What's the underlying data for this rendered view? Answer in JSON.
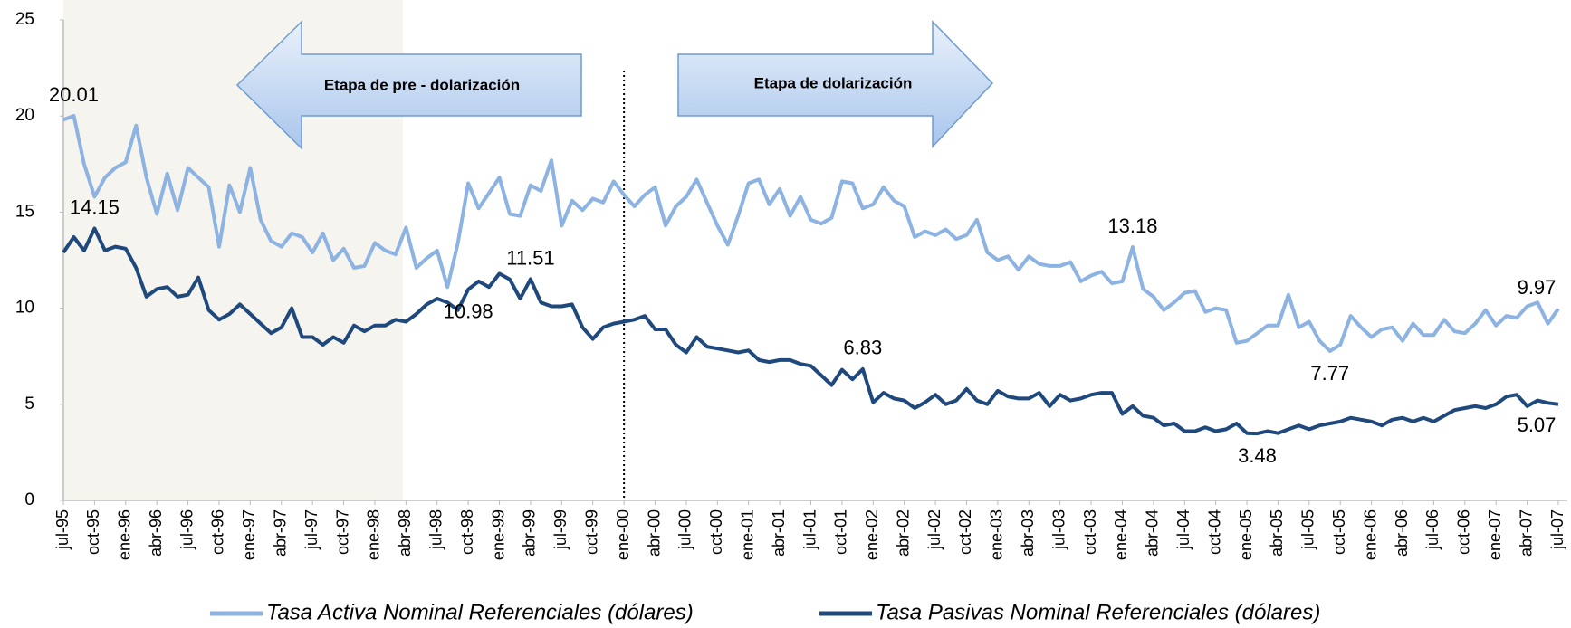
{
  "chart_data": {
    "type": "line",
    "annotations": [
      "Etapa de pre - dolarización",
      "Etapa de dolarización"
    ],
    "categories": [
      "jul-95",
      null,
      null,
      "oct-95",
      null,
      null,
      "ene-96",
      null,
      null,
      "abr-96",
      null,
      null,
      "jul-96",
      null,
      null,
      "oct-96",
      null,
      null,
      "ene-97",
      null,
      null,
      "abr-97",
      null,
      null,
      "jul-97",
      null,
      null,
      "oct-97",
      null,
      null,
      "ene-98",
      null,
      null,
      "abr-98",
      null,
      null,
      "jul-98",
      null,
      null,
      "oct-98",
      null,
      null,
      "ene-99",
      null,
      null,
      "abr-99",
      null,
      null,
      "jul-99",
      null,
      null,
      "oct-99",
      null,
      null,
      "ene-00",
      null,
      null,
      "abr-00",
      null,
      null,
      "jul-00",
      null,
      null,
      "oct-00",
      null,
      null,
      "ene-01",
      null,
      null,
      "abr-01",
      null,
      null,
      "jul-01",
      null,
      null,
      "oct-01",
      null,
      null,
      "ene-02",
      null,
      null,
      "abr-02",
      null,
      null,
      "jul-02",
      null,
      null,
      "oct-02",
      null,
      null,
      "ene-03",
      null,
      null,
      "abr-03",
      null,
      null,
      "jul-03",
      null,
      null,
      "oct-03",
      null,
      null,
      "ene-04",
      null,
      null,
      "abr-04",
      null,
      null,
      "jul-04",
      null,
      null,
      "oct-04",
      null,
      null,
      "ene-05",
      null,
      null,
      "abr-05",
      null,
      null,
      "jul-05",
      null,
      null,
      "oct-05",
      null,
      null,
      "ene-06",
      null,
      null,
      "abr-06",
      null,
      null,
      "jul-06",
      null,
      null,
      "oct-06",
      null,
      null,
      "ene-07",
      null,
      null,
      "abr-07",
      null,
      null,
      "jul-07"
    ],
    "series": [
      {
        "name": "Tasa Activa Nominal Referenciales (dólares)",
        "color": "#8db3e2",
        "values": [
          19.8,
          20.01,
          17.5,
          15.8,
          16.8,
          17.3,
          17.6,
          19.5,
          16.8,
          14.9,
          17.0,
          15.1,
          17.3,
          16.8,
          16.3,
          13.2,
          16.4,
          15.0,
          17.3,
          14.6,
          13.5,
          13.2,
          13.9,
          13.7,
          12.9,
          13.9,
          12.5,
          13.1,
          12.1,
          12.2,
          13.4,
          13.0,
          12.8,
          14.2,
          12.1,
          12.6,
          13.0,
          11.1,
          13.4,
          16.5,
          15.2,
          16.0,
          16.8,
          14.9,
          14.8,
          16.4,
          16.1,
          17.7,
          14.3,
          15.6,
          15.1,
          15.7,
          15.5,
          16.6,
          15.9,
          15.3,
          15.9,
          16.3,
          14.3,
          15.3,
          15.8,
          16.7,
          15.5,
          14.3,
          13.3,
          14.8,
          16.5,
          16.7,
          15.4,
          16.2,
          14.8,
          15.8,
          14.6,
          14.4,
          14.7,
          16.6,
          16.5,
          15.2,
          15.4,
          16.3,
          15.6,
          15.3,
          13.7,
          14.0,
          13.8,
          14.1,
          13.6,
          13.8,
          14.6,
          12.9,
          12.5,
          12.7,
          12.0,
          12.7,
          12.3,
          12.2,
          12.2,
          12.4,
          11.4,
          11.7,
          11.9,
          11.3,
          11.4,
          13.18,
          11.0,
          10.6,
          9.9,
          10.3,
          10.8,
          10.9,
          9.8,
          10.0,
          9.9,
          8.2,
          8.3,
          8.7,
          9.1,
          9.1,
          10.7,
          9.0,
          9.3,
          8.3,
          7.77,
          8.1,
          9.6,
          9.0,
          8.5,
          8.9,
          9.0,
          8.3,
          9.2,
          8.6,
          8.6,
          9.4,
          8.8,
          8.7,
          9.2,
          9.9,
          9.1,
          9.6,
          9.5,
          10.1,
          10.3,
          9.2,
          9.97
        ],
        "value_labels": {
          "1": "20.01",
          "103": "13.18",
          "122": "7.77",
          "144": "9.97"
        }
      },
      {
        "name": "Tasa Pasivas Nominal Referenciales (dólares)",
        "color": "#1f497d",
        "values": [
          12.9,
          13.7,
          13.0,
          14.15,
          13.0,
          13.2,
          13.1,
          12.1,
          10.6,
          11.0,
          11.1,
          10.6,
          10.7,
          11.6,
          9.9,
          9.4,
          9.7,
          10.2,
          9.7,
          9.2,
          8.7,
          9.0,
          10.0,
          8.5,
          8.5,
          8.1,
          8.5,
          8.2,
          9.1,
          8.8,
          9.1,
          9.1,
          9.4,
          9.3,
          9.7,
          10.2,
          10.5,
          10.3,
          9.9,
          10.98,
          11.4,
          11.1,
          11.8,
          11.5,
          10.5,
          11.51,
          10.3,
          10.1,
          10.1,
          10.2,
          9.0,
          8.4,
          9.0,
          9.2,
          9.3,
          9.4,
          9.6,
          8.9,
          8.9,
          8.1,
          7.7,
          8.5,
          8.0,
          7.9,
          7.8,
          7.7,
          7.8,
          7.3,
          7.2,
          7.3,
          7.3,
          7.1,
          7.0,
          6.5,
          6.0,
          6.8,
          6.3,
          6.83,
          5.1,
          5.6,
          5.3,
          5.2,
          4.8,
          5.1,
          5.5,
          5.0,
          5.2,
          5.8,
          5.2,
          5.0,
          5.7,
          5.4,
          5.3,
          5.3,
          5.6,
          4.9,
          5.5,
          5.2,
          5.3,
          5.5,
          5.6,
          5.6,
          4.5,
          4.9,
          4.4,
          4.3,
          3.9,
          4.0,
          3.6,
          3.6,
          3.8,
          3.6,
          3.7,
          4.0,
          3.5,
          3.48,
          3.6,
          3.5,
          3.7,
          3.9,
          3.7,
          3.9,
          4.0,
          4.1,
          4.3,
          4.2,
          4.1,
          3.9,
          4.2,
          4.3,
          4.1,
          4.3,
          4.1,
          4.4,
          4.7,
          4.8,
          4.9,
          4.8,
          5.0,
          5.4,
          5.5,
          4.9,
          5.2,
          5.07,
          5.0
        ],
        "value_labels": {
          "3": "14.15",
          "39": "10.98",
          "45": "11.51",
          "77": "6.83",
          "115": "3.48",
          "143": "5.07"
        }
      }
    ],
    "ylim": [
      0,
      25
    ],
    "yticks": [
      0,
      5,
      10,
      15,
      20,
      25
    ],
    "grid": false
  }
}
